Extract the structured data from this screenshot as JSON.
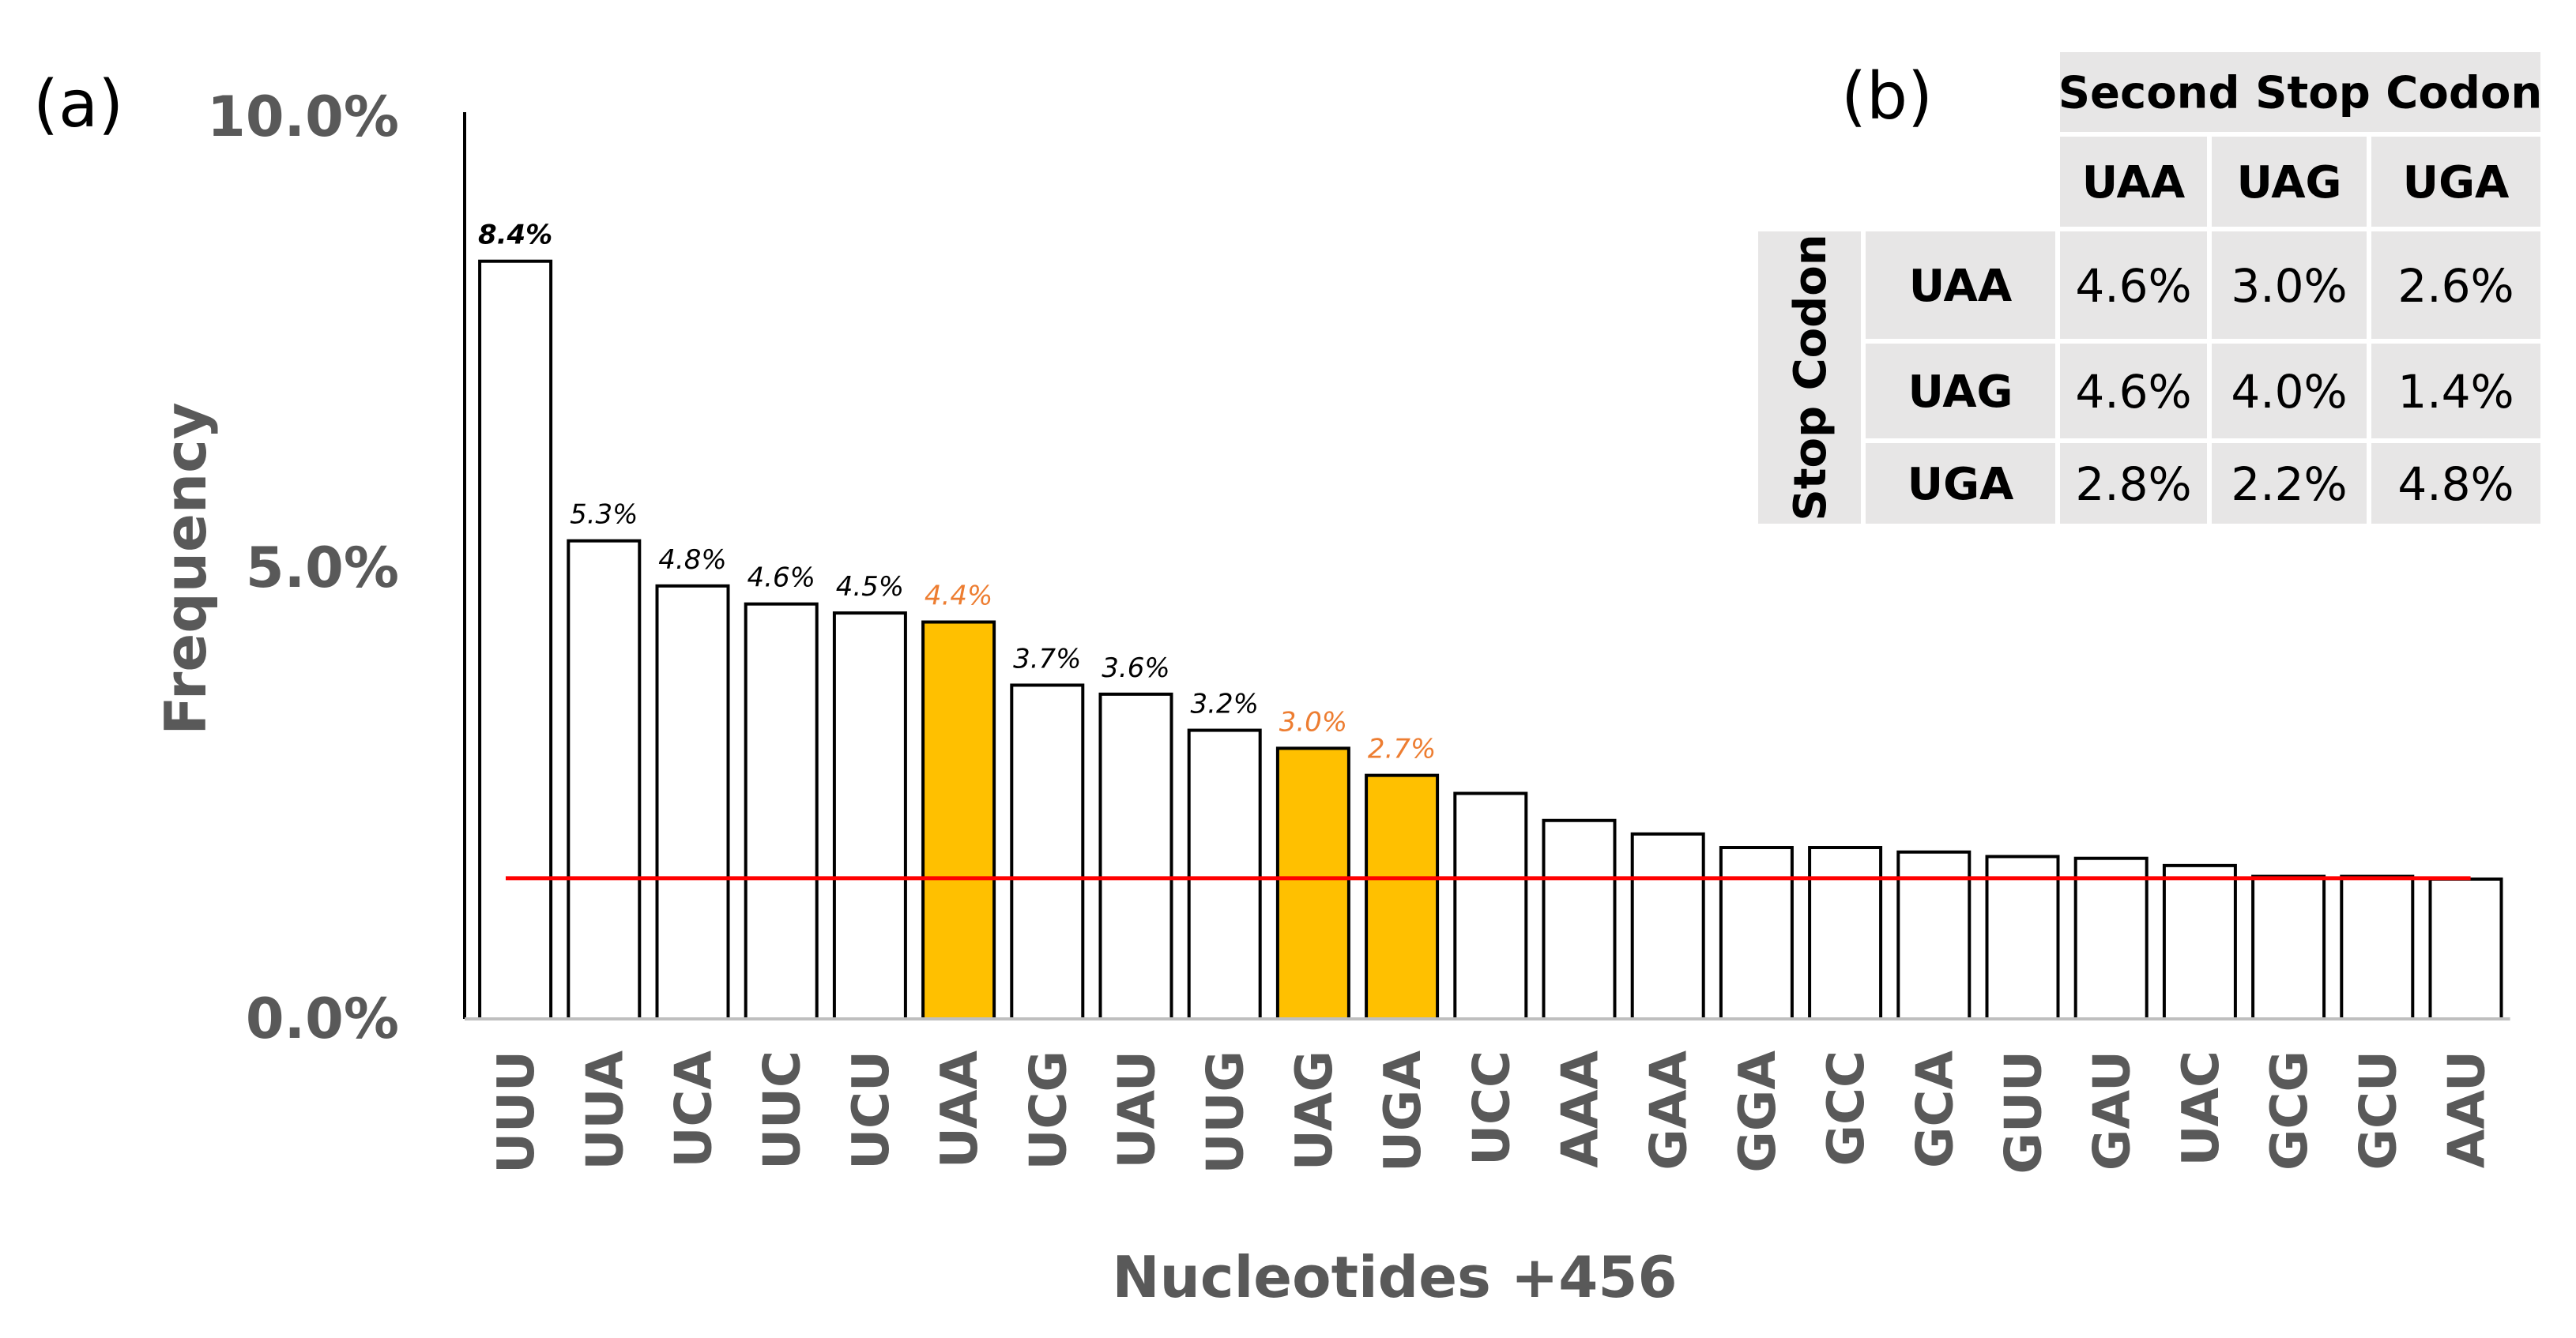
{
  "panel_a_label": "(a)",
  "panel_b_label": "(b)",
  "colors": {
    "highlight_fill": "#FFC000",
    "highlight_label": "#ED7D31",
    "reference_line": "#FF0000",
    "axis_text": "#595959",
    "table_cell": "#E7E6E6"
  },
  "chart_data": [
    {
      "type": "bar",
      "title": "",
      "xlabel": "Nucleotides +456",
      "ylabel": "Frequency",
      "ylim": [
        0,
        10
      ],
      "yticks": [
        {
          "value": 0,
          "label": "0.0%"
        },
        {
          "value": 5,
          "label": "5.0%"
        },
        {
          "value": 10,
          "label": "10.0%"
        }
      ],
      "categories": [
        "UUU",
        "UUA",
        "UCA",
        "UUC",
        "UCU",
        "UAA",
        "UCG",
        "UAU",
        "UUG",
        "UAG",
        "UGA",
        "UCC",
        "AAA",
        "GAA",
        "GGA",
        "GCC",
        "GCA",
        "GUU",
        "GAU",
        "UAC",
        "GCG",
        "GCU",
        "AAU"
      ],
      "values": [
        8.4,
        5.3,
        4.8,
        4.6,
        4.5,
        4.4,
        3.7,
        3.6,
        3.2,
        3.0,
        2.7,
        2.5,
        2.2,
        2.05,
        1.9,
        1.9,
        1.85,
        1.8,
        1.78,
        1.7,
        1.58,
        1.58,
        1.55
      ],
      "data_labels": [
        "8.4%",
        "5.3%",
        "4.8%",
        "4.6%",
        "4.5%",
        "4.4%",
        "3.7%",
        "3.6%",
        "3.2%",
        "3.0%",
        "2.7%",
        null,
        null,
        null,
        null,
        null,
        null,
        null,
        null,
        null,
        null,
        null,
        null
      ],
      "highlighted": [
        "UAA",
        "UAG",
        "UGA"
      ],
      "reference_line": {
        "value": 1.56,
        "color": "#FF0000"
      },
      "grid": false,
      "legend": "none"
    },
    {
      "type": "table",
      "title": "Second Stop Codon",
      "row_group_label": "Stop Codon",
      "columns": [
        "UAA",
        "UAG",
        "UGA"
      ],
      "rows": [
        {
          "label": "UAA",
          "values": [
            "4.6%",
            "3.0%",
            "2.6%"
          ]
        },
        {
          "label": "UAG",
          "values": [
            "4.6%",
            "4.0%",
            "1.4%"
          ]
        },
        {
          "label": "UGA",
          "values": [
            "2.8%",
            "2.2%",
            "4.8%"
          ]
        }
      ]
    }
  ]
}
